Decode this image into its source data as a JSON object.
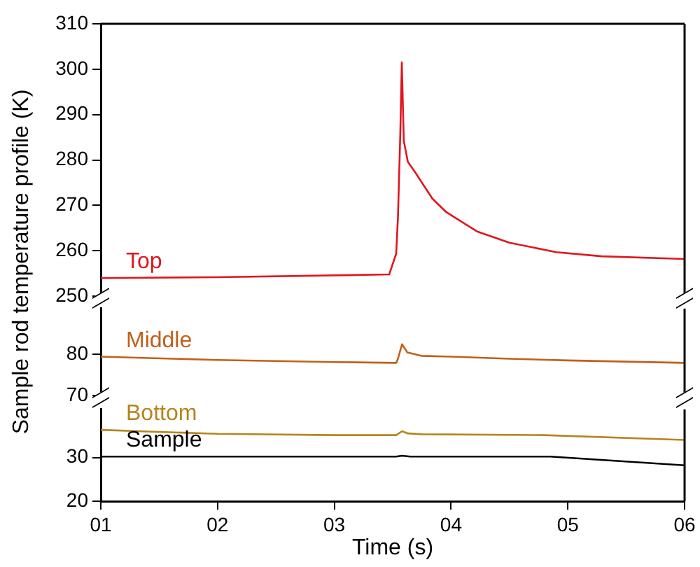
{
  "chart_data": [
    {
      "type": "line",
      "ylabel": "Sample rod temperature profile (K)",
      "xlim": [
        1,
        6
      ],
      "ylim": [
        250,
        310
      ],
      "yticks": [
        250,
        260,
        270,
        280,
        290,
        300,
        310
      ],
      "tick_labels": "y",
      "grid": false,
      "legend": false,
      "marker": "none",
      "line_style": "solid",
      "series": [
        {
          "name": "Top",
          "color": "#e0161e",
          "x": [
            1,
            2,
            3,
            3.47,
            3.53,
            3.545,
            3.565,
            3.578,
            3.595,
            3.63,
            3.7,
            3.84,
            3.96,
            4.22,
            4.5,
            4.9,
            5.29,
            6
          ],
          "values": [
            254,
            254.2,
            254.6,
            254.8,
            259.4,
            267.4,
            285.7,
            301.5,
            284.2,
            279.6,
            277,
            271.5,
            268.5,
            264.3,
            261.8,
            259.7,
            258.8,
            258.2
          ]
        }
      ]
    },
    {
      "type": "line",
      "xlim": [
        1,
        6
      ],
      "ylim": [
        70,
        91
      ],
      "yticks": [
        70,
        80
      ],
      "tick_labels": "y",
      "grid": false,
      "legend": false,
      "marker": "none",
      "line_style": "solid",
      "series": [
        {
          "name": "Middle",
          "color": "#c0601a",
          "x": [
            1,
            2,
            3,
            3.53,
            3.545,
            3.58,
            3.626,
            3.745,
            4,
            4.5,
            5,
            6
          ],
          "values": [
            79.4,
            78.6,
            78.1,
            77.9,
            78.9,
            82.4,
            80.4,
            79.6,
            79.4,
            78.9,
            78.5,
            77.9
          ]
        }
      ]
    },
    {
      "type": "line",
      "xlabel": "Time (s)",
      "xlim": [
        1,
        6
      ],
      "xticks": [
        {
          "value": 1,
          "label": "01"
        },
        {
          "value": 2,
          "label": "02"
        },
        {
          "value": 3,
          "label": "03"
        },
        {
          "value": 4,
          "label": "04"
        },
        {
          "value": 5,
          "label": "05"
        },
        {
          "value": 6,
          "label": "06"
        }
      ],
      "ylim": [
        20,
        41
      ],
      "yticks": [
        20,
        30
      ],
      "grid": false,
      "legend": false,
      "marker": "none",
      "line_style": "solid",
      "series": [
        {
          "name": "Bottom",
          "color": "#b5851e",
          "x": [
            1,
            2,
            3,
            3.53,
            3.58,
            3.63,
            3.75,
            4.8,
            6
          ],
          "values": [
            36.3,
            35.4,
            35.1,
            35.1,
            36,
            35.5,
            35.3,
            35.1,
            34
          ]
        },
        {
          "name": "Sample",
          "color": "#000000",
          "x": [
            1,
            3.53,
            3.58,
            3.65,
            4.85,
            6
          ],
          "values": [
            30.2,
            30.2,
            30.4,
            30.2,
            30.2,
            28.2
          ]
        }
      ]
    }
  ]
}
